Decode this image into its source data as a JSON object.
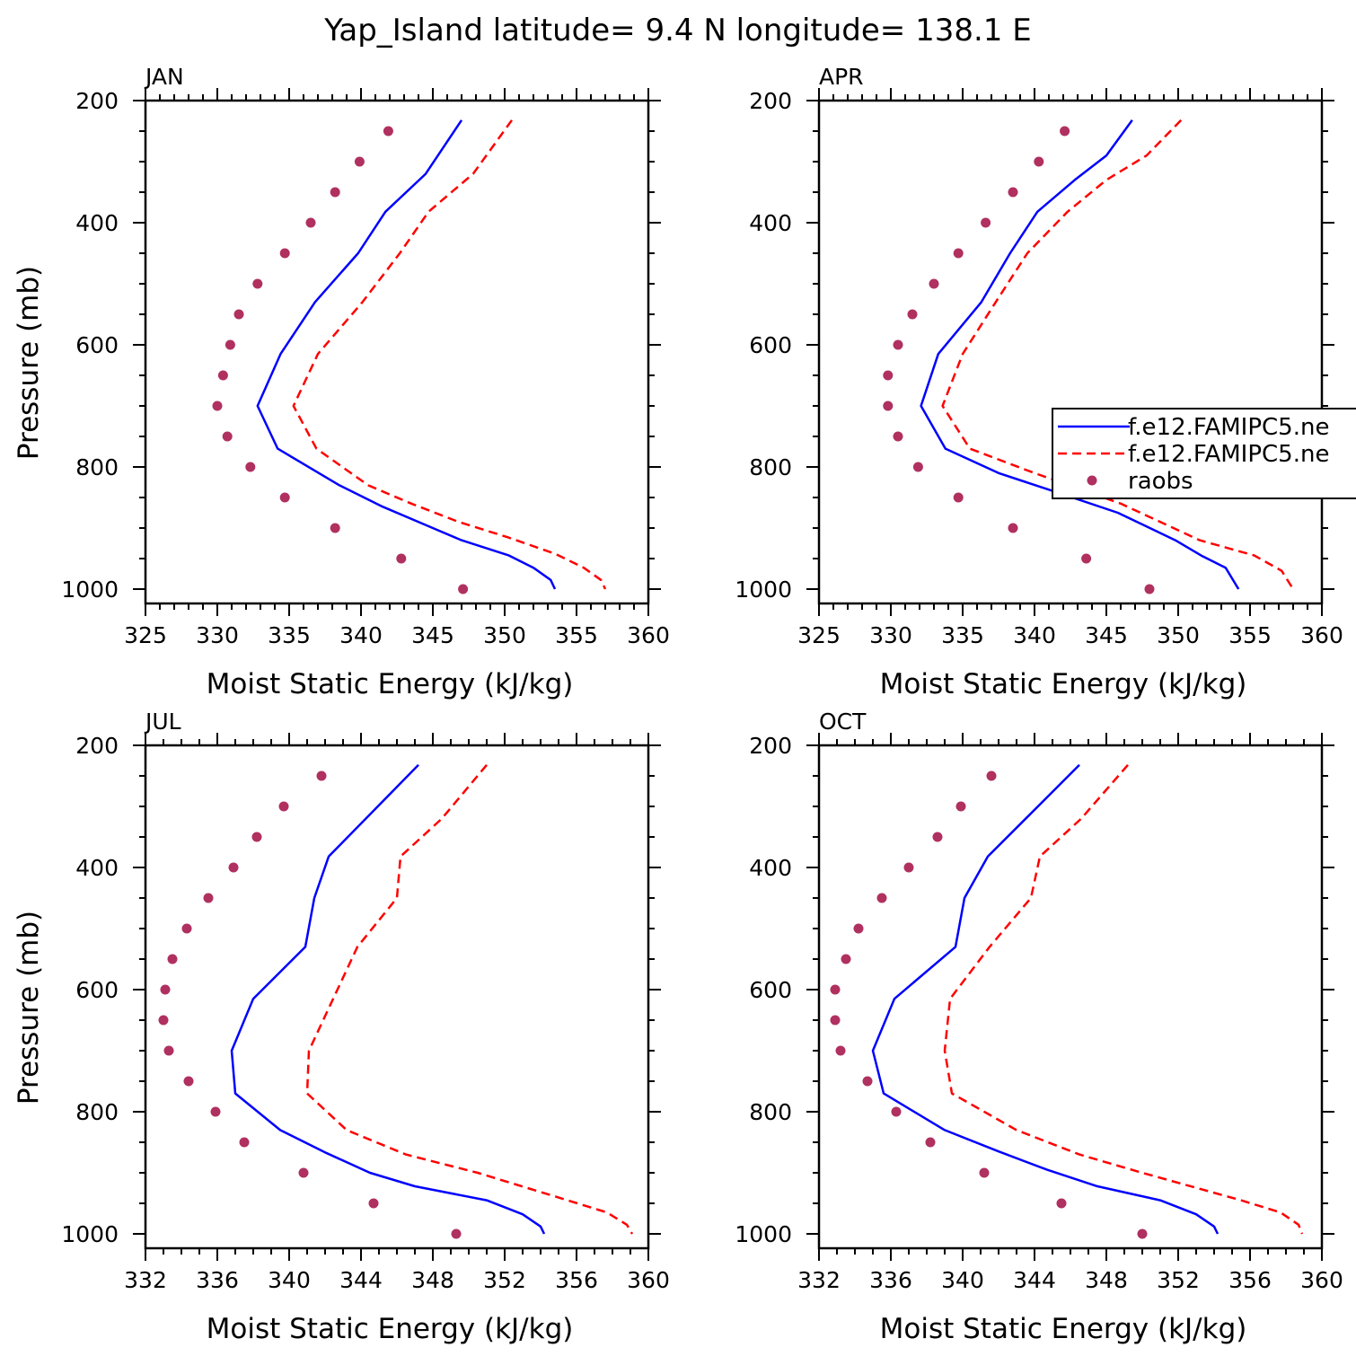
{
  "title": "Yap_Island  latitude= 9.4 N longitude= 138.1 E",
  "chart_data": [
    {
      "type": "line",
      "panel": "JAN",
      "xlabel": "Moist Static Energy (kJ/kg)",
      "ylabel": "Pressure (mb)",
      "xlim": [
        325,
        360
      ],
      "ylim": [
        200,
        1000
      ],
      "y_inverted": true,
      "xticks": [
        "325",
        "330",
        "335",
        "340",
        "345",
        "350",
        "355",
        "360"
      ],
      "yticks": [
        "200",
        "400",
        "600",
        "800",
        "1000"
      ],
      "legend": false,
      "series": [
        {
          "name": "f.e12.FAMIPC5.ne",
          "style": "solid",
          "color": "#0000ff",
          "x": [
            347.0,
            344.5,
            341.7,
            339.8,
            336.8,
            334.4,
            332.8,
            334.2,
            338.5,
            341.5,
            344.5,
            347.0,
            350.3,
            352.0,
            353.2,
            353.5
          ],
          "y": [
            232,
            320,
            382,
            450,
            530,
            615,
            700,
            770,
            830,
            865,
            895,
            920,
            945,
            965,
            985,
            1000
          ]
        },
        {
          "name": "f.e12.FAMIPC5.ne",
          "style": "dashed",
          "color": "#ff0000",
          "x": [
            350.5,
            347.8,
            344.7,
            342.7,
            340.1,
            337.0,
            335.3,
            336.9,
            340.5,
            343.5,
            346.8,
            350.2,
            353.5,
            355.5,
            356.7,
            357.0
          ],
          "y": [
            232,
            320,
            382,
            450,
            530,
            615,
            700,
            770,
            830,
            860,
            890,
            915,
            942,
            965,
            985,
            1000
          ]
        },
        {
          "name": "raobs",
          "style": "dots",
          "color": "#b03060",
          "x": [
            341.9,
            339.9,
            338.2,
            336.5,
            334.7,
            332.8,
            331.5,
            330.9,
            330.4,
            330.0,
            330.7,
            332.3,
            334.7,
            338.2,
            342.8,
            347.1
          ],
          "y": [
            250,
            300,
            350,
            400,
            450,
            500,
            550,
            600,
            650,
            700,
            750,
            800,
            850,
            900,
            950,
            1000
          ]
        }
      ]
    },
    {
      "type": "line",
      "panel": "APR",
      "xlabel": "Moist Static Energy (kJ/kg)",
      "ylabel": "",
      "xlim": [
        325,
        360
      ],
      "ylim": [
        200,
        1000
      ],
      "y_inverted": true,
      "xticks": [
        "325",
        "330",
        "335",
        "340",
        "345",
        "350",
        "355",
        "360"
      ],
      "yticks": [
        "200",
        "400",
        "600",
        "800",
        "1000"
      ],
      "legend": true,
      "legend_position": "right",
      "legend_entries": [
        "f.e12.FAMIPC5.ne",
        "f.e12.FAMIPC5.ne",
        "raobs"
      ],
      "series": [
        {
          "name": "f.e12.FAMIPC5.ne",
          "style": "solid",
          "color": "#0000ff",
          "x": [
            346.8,
            345.0,
            342.8,
            340.2,
            338.3,
            336.3,
            333.3,
            332.1,
            333.8,
            337.5,
            342.0,
            345.8,
            349.8,
            351.6,
            353.3,
            354.2
          ],
          "y": [
            232,
            290,
            330,
            382,
            450,
            530,
            615,
            700,
            770,
            810,
            845,
            875,
            920,
            945,
            965,
            1000
          ]
        },
        {
          "name": "f.e12.FAMIPC5.ne",
          "style": "dashed",
          "color": "#ff0000",
          "x": [
            350.2,
            347.8,
            345.0,
            342.3,
            339.5,
            337.3,
            335.0,
            333.6,
            335.5,
            340.0,
            346.0,
            351.5,
            355.3,
            357.2,
            358.0
          ],
          "y": [
            232,
            290,
            330,
            382,
            450,
            530,
            615,
            700,
            770,
            810,
            860,
            920,
            945,
            970,
            1000
          ]
        },
        {
          "name": "raobs",
          "style": "dots",
          "color": "#b03060",
          "x": [
            342.1,
            340.3,
            338.5,
            336.6,
            334.7,
            333.0,
            331.5,
            330.5,
            329.8,
            329.8,
            330.5,
            331.9,
            334.7,
            338.5,
            343.6,
            348.0
          ],
          "y": [
            250,
            300,
            350,
            400,
            450,
            500,
            550,
            600,
            650,
            700,
            750,
            800,
            850,
            900,
            950,
            1000
          ]
        }
      ]
    },
    {
      "type": "line",
      "panel": "JUL",
      "xlabel": "Moist Static Energy (kJ/kg)",
      "ylabel": "Pressure (mb)",
      "xlim": [
        332,
        360
      ],
      "ylim": [
        200,
        1000
      ],
      "y_inverted": true,
      "xticks": [
        "332",
        "336",
        "340",
        "344",
        "348",
        "352",
        "356",
        "360"
      ],
      "yticks": [
        "200",
        "400",
        "600",
        "800",
        "1000"
      ],
      "legend": false,
      "series": [
        {
          "name": "f.e12.FAMIPC5.ne",
          "style": "solid",
          "color": "#0000ff",
          "x": [
            347.2,
            342.2,
            341.4,
            340.9,
            338.0,
            336.8,
            337.0,
            339.5,
            342.1,
            344.5,
            347.0,
            351.0,
            353.0,
            354.0,
            354.2
          ],
          "y": [
            232,
            382,
            450,
            530,
            615,
            700,
            770,
            830,
            868,
            900,
            922,
            945,
            968,
            988,
            1000
          ]
        },
        {
          "name": "f.e12.FAMIPC5.ne",
          "style": "dashed",
          "color": "#ff0000",
          "x": [
            351.0,
            348.5,
            346.2,
            346.0,
            343.8,
            341.1,
            341.0,
            343.2,
            346.5,
            350.5,
            355.5,
            357.7,
            358.8,
            359.1
          ],
          "y": [
            232,
            320,
            382,
            450,
            530,
            700,
            770,
            830,
            870,
            900,
            945,
            965,
            985,
            1000
          ]
        },
        {
          "name": "raobs",
          "style": "dots",
          "color": "#b03060",
          "x": [
            341.8,
            339.7,
            338.2,
            336.9,
            335.5,
            334.3,
            333.5,
            333.1,
            333.0,
            333.3,
            334.4,
            335.9,
            337.5,
            340.8,
            344.7,
            349.3
          ],
          "y": [
            250,
            300,
            350,
            400,
            450,
            500,
            550,
            600,
            650,
            700,
            750,
            800,
            850,
            900,
            950,
            1000
          ]
        }
      ]
    },
    {
      "type": "line",
      "panel": "OCT",
      "xlabel": "Moist Static Energy (kJ/kg)",
      "ylabel": "",
      "xlim": [
        332,
        360
      ],
      "ylim": [
        200,
        1000
      ],
      "y_inverted": true,
      "xticks": [
        "332",
        "336",
        "340",
        "344",
        "348",
        "352",
        "356",
        "360"
      ],
      "yticks": [
        "200",
        "400",
        "600",
        "800",
        "1000"
      ],
      "legend": false,
      "series": [
        {
          "name": "f.e12.FAMIPC5.ne",
          "style": "solid",
          "color": "#0000ff",
          "x": [
            346.5,
            341.4,
            340.1,
            339.6,
            336.2,
            335.0,
            335.6,
            339.0,
            342.0,
            344.7,
            347.5,
            351.0,
            353.0,
            354.0,
            354.2
          ],
          "y": [
            232,
            382,
            450,
            530,
            615,
            700,
            770,
            830,
            865,
            895,
            922,
            945,
            968,
            988,
            1000
          ]
        },
        {
          "name": "f.e12.FAMIPC5.ne",
          "style": "dashed",
          "color": "#ff0000",
          "x": [
            349.2,
            346.6,
            344.3,
            343.8,
            341.5,
            339.3,
            339.0,
            339.4,
            343.0,
            346.5,
            350.0,
            355.5,
            357.7,
            358.7,
            358.9
          ],
          "y": [
            232,
            320,
            382,
            450,
            530,
            615,
            700,
            770,
            830,
            870,
            900,
            945,
            965,
            985,
            1000
          ]
        },
        {
          "name": "raobs",
          "style": "dots",
          "color": "#b03060",
          "x": [
            341.6,
            339.9,
            338.6,
            337.0,
            335.5,
            334.2,
            333.5,
            332.9,
            332.9,
            333.2,
            334.7,
            336.3,
            338.2,
            341.2,
            345.5,
            350.0
          ],
          "y": [
            250,
            300,
            350,
            400,
            450,
            500,
            550,
            600,
            650,
            700,
            750,
            800,
            850,
            900,
            950,
            1000
          ]
        }
      ]
    }
  ]
}
